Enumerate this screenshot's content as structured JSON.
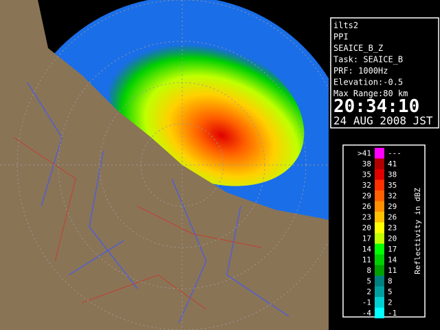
{
  "info": {
    "lines": [
      "ilts2",
      "PPI",
      "SEAICE_B_Z",
      "Task: SEAICE_B",
      "PRF: 1000Hz",
      "Elevation:-0.5",
      "Max Range:80 km"
    ],
    "time": "20:34:10",
    "date": "24 AUG 2008 JST"
  },
  "legend": {
    "title": "Reflectivity in dBZ",
    "rows": [
      {
        "low": ">41",
        "high": "---",
        "color": "#ff00ff"
      },
      {
        "low": "38",
        "high": "41",
        "color": "#b00000"
      },
      {
        "low": "35",
        "high": "38",
        "color": "#e00000"
      },
      {
        "low": "32",
        "high": "35",
        "color": "#ff3000"
      },
      {
        "low": "29",
        "high": "32",
        "color": "#ff6000"
      },
      {
        "low": "26",
        "high": "29",
        "color": "#ff9000"
      },
      {
        "low": "23",
        "high": "26",
        "color": "#ffc000"
      },
      {
        "low": "20",
        "high": "23",
        "color": "#ffff00"
      },
      {
        "low": "17",
        "high": "20",
        "color": "#c0ff00"
      },
      {
        "low": "14",
        "high": "17",
        "color": "#00ff00"
      },
      {
        "low": "11",
        "high": "14",
        "color": "#00d000"
      },
      {
        "low": "8",
        "high": "11",
        "color": "#00a000"
      },
      {
        "low": "5",
        "high": "8",
        "color": "#008080"
      },
      {
        "low": "2",
        "high": "5",
        "color": "#00a0a0"
      },
      {
        "low": "-1",
        "high": "2",
        "color": "#00d0d0"
      },
      {
        "low": "-4",
        "high": "-1",
        "color": "#00ffff"
      }
    ]
  }
}
